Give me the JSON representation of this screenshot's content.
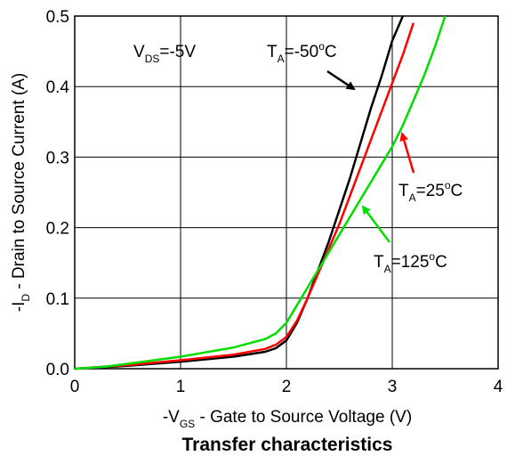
{
  "chart_data": {
    "type": "line",
    "title": "Transfer characteristics",
    "xlabel": {
      "prefix": "-V",
      "sub": "GS",
      "rest": " - Gate to Source Voltage (V)"
    },
    "ylabel": {
      "prefix": "-I",
      "sub": "D",
      "rest": " - Drain to Source Current (A)"
    },
    "xlim": [
      0,
      4
    ],
    "ylim": [
      0,
      0.5
    ],
    "xticks": [
      0,
      1,
      2,
      3,
      4
    ],
    "xtick_labels": [
      "0",
      "1",
      "2",
      "3",
      "4"
    ],
    "yticks": [
      0,
      0.1,
      0.2,
      0.3,
      0.4,
      0.5
    ],
    "ytick_labels": [
      "0.0",
      "0.1",
      "0.2",
      "0.3",
      "0.4",
      "0.5"
    ],
    "grid": true,
    "condition": {
      "prefix": "V",
      "sub": "DS",
      "rest": "=-5V"
    },
    "series": [
      {
        "name": "T_A=-50°C",
        "color": "#000000",
        "x": [
          0,
          0.5,
          1.0,
          1.5,
          1.8,
          1.9,
          2.0,
          2.1,
          2.2,
          2.3,
          2.4,
          2.5,
          2.6,
          2.7,
          2.8,
          2.9,
          3.0,
          3.1
        ],
        "y": [
          0.0,
          0.004,
          0.01,
          0.017,
          0.024,
          0.029,
          0.04,
          0.065,
          0.1,
          0.14,
          0.18,
          0.225,
          0.27,
          0.32,
          0.37,
          0.415,
          0.465,
          0.5
        ]
      },
      {
        "name": "T_A=25°C",
        "color": "#ff0000",
        "x": [
          0,
          0.5,
          1.0,
          1.5,
          1.8,
          1.9,
          2.0,
          2.1,
          2.2,
          2.3,
          2.4,
          2.5,
          2.6,
          2.7,
          2.8,
          2.9,
          3.0,
          3.1,
          3.2
        ],
        "y": [
          0.0,
          0.005,
          0.012,
          0.02,
          0.028,
          0.034,
          0.045,
          0.068,
          0.1,
          0.135,
          0.17,
          0.205,
          0.245,
          0.285,
          0.325,
          0.365,
          0.405,
          0.445,
          0.49
        ]
      },
      {
        "name": "T_A=125°C",
        "color": "#00dd00",
        "x": [
          0,
          0.3,
          0.5,
          1.0,
          1.5,
          1.8,
          1.9,
          2.0,
          2.1,
          2.2,
          2.3,
          2.4,
          2.5,
          2.6,
          2.7,
          2.8,
          2.9,
          3.0,
          3.1,
          3.2,
          3.3,
          3.4,
          3.5
        ],
        "y": [
          0.0,
          0.003,
          0.007,
          0.017,
          0.03,
          0.042,
          0.05,
          0.065,
          0.09,
          0.115,
          0.14,
          0.165,
          0.19,
          0.215,
          0.24,
          0.265,
          0.29,
          0.315,
          0.345,
          0.38,
          0.415,
          0.455,
          0.5
        ]
      }
    ],
    "annotations": [
      {
        "prefix": "T",
        "sub": "A",
        "value": "=-50",
        "sup": "o",
        "unit": "C",
        "color": "#000000"
      },
      {
        "prefix": "T",
        "sub": "A",
        "value": "=25",
        "sup": "o",
        "unit": "C",
        "color": "#ff0000"
      },
      {
        "prefix": "T",
        "sub": "A",
        "value": "=125",
        "sup": "o",
        "unit": "C",
        "color": "#00dd00"
      }
    ]
  }
}
